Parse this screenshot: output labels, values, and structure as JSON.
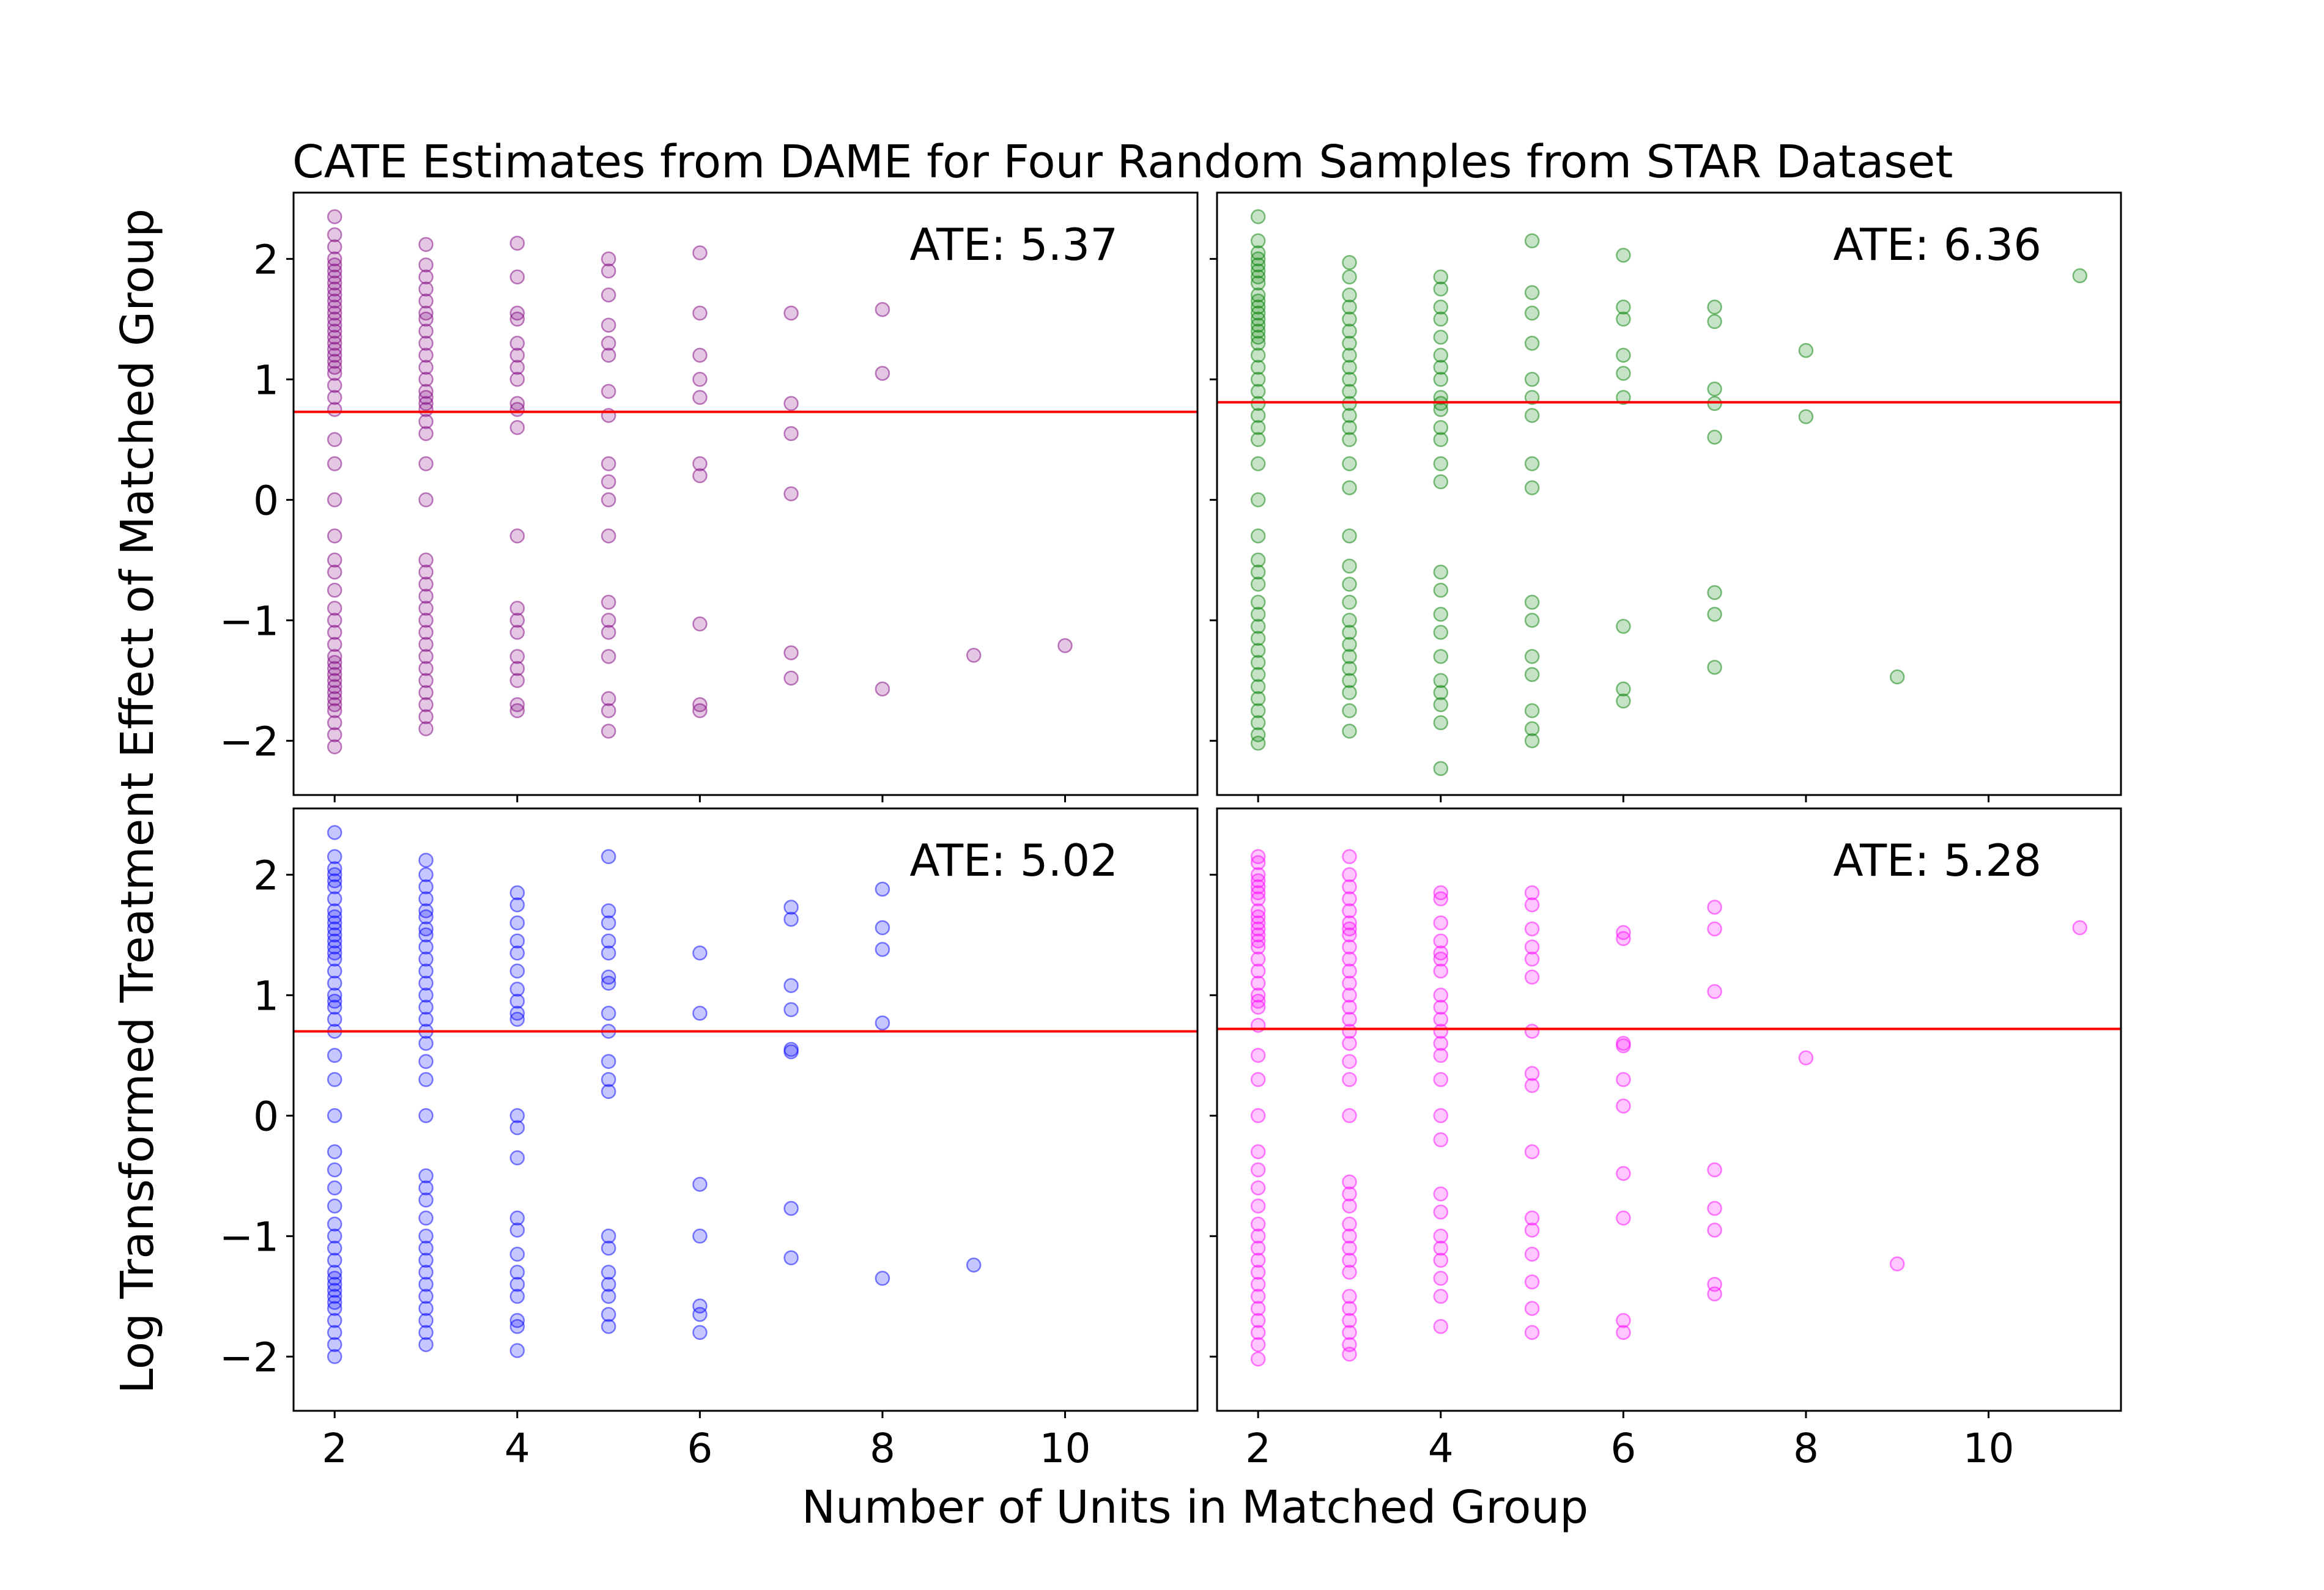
{
  "figure": {
    "title": "CATE Estimates from DAME for Four Random Samples from STAR Dataset",
    "xlabel": "Number of Units in Matched Group",
    "ylabel": "Log Transformed Treatment Effect of Matched Group"
  },
  "chart_data": [
    {
      "type": "scatter",
      "panel": "top-left",
      "annotation": "ATE: 5.37",
      "color": "#800080",
      "reference_line": {
        "y": 0.73,
        "color": "#ff0000"
      },
      "xlim": [
        1.55,
        11.45
      ],
      "ylim": [
        -2.45,
        2.55
      ],
      "xticks": [
        2,
        4,
        6,
        8,
        10
      ],
      "yticks": [
        -2,
        -1,
        0,
        1,
        2
      ],
      "grid": false,
      "columns": [
        {
          "x": 2,
          "y": [
            2.35,
            2.2,
            2.1,
            2.0,
            1.95,
            1.9,
            1.85,
            1.8,
            1.75,
            1.7,
            1.65,
            1.6,
            1.55,
            1.5,
            1.45,
            1.4,
            1.35,
            1.3,
            1.25,
            1.2,
            1.15,
            1.1,
            1.05,
            0.95,
            0.85,
            0.75,
            0.5,
            0.3,
            0.0,
            -0.3,
            -0.5,
            -0.6,
            -0.75,
            -0.9,
            -1.0,
            -1.1,
            -1.2,
            -1.3,
            -1.35,
            -1.4,
            -1.45,
            -1.5,
            -1.55,
            -1.6,
            -1.65,
            -1.7,
            -1.75,
            -1.85,
            -1.95,
            -2.05
          ]
        },
        {
          "x": 3,
          "y": [
            2.12,
            1.95,
            1.85,
            1.75,
            1.65,
            1.55,
            1.5,
            1.4,
            1.3,
            1.2,
            1.1,
            1.0,
            0.9,
            0.85,
            0.8,
            0.75,
            0.65,
            0.55,
            0.3,
            0.0,
            -0.5,
            -0.6,
            -0.7,
            -0.8,
            -0.9,
            -1.0,
            -1.1,
            -1.2,
            -1.3,
            -1.4,
            -1.5,
            -1.6,
            -1.7,
            -1.8,
            -1.9
          ]
        },
        {
          "x": 4,
          "y": [
            2.13,
            1.85,
            1.55,
            1.5,
            1.3,
            1.2,
            1.1,
            1.0,
            0.8,
            0.75,
            0.6,
            -0.3,
            -0.9,
            -1.0,
            -1.1,
            -1.3,
            -1.4,
            -1.5,
            -1.7,
            -1.75
          ]
        },
        {
          "x": 5,
          "y": [
            2.0,
            1.9,
            1.7,
            1.45,
            1.3,
            1.2,
            0.9,
            0.7,
            0.3,
            0.15,
            0.0,
            -0.3,
            -0.85,
            -1.0,
            -1.1,
            -1.3,
            -1.65,
            -1.75,
            -1.92
          ]
        },
        {
          "x": 6,
          "y": [
            2.05,
            1.55,
            1.2,
            1.0,
            0.85,
            0.3,
            0.2,
            -1.03,
            -1.7,
            -1.75
          ]
        },
        {
          "x": 7,
          "y": [
            1.55,
            0.8,
            0.55,
            0.05,
            -1.27,
            -1.48
          ]
        },
        {
          "x": 8,
          "y": [
            1.58,
            1.05,
            -1.57
          ]
        },
        {
          "x": 9,
          "y": [
            -1.29
          ]
        },
        {
          "x": 10,
          "y": [
            -1.21
          ]
        }
      ]
    },
    {
      "type": "scatter",
      "panel": "top-right",
      "annotation": "ATE: 6.36",
      "color": "#008000",
      "reference_line": {
        "y": 0.81,
        "color": "#ff0000"
      },
      "xlim": [
        1.55,
        11.45
      ],
      "ylim": [
        -2.45,
        2.55
      ],
      "xticks": [
        2,
        4,
        6,
        8,
        10
      ],
      "yticks": [
        -2,
        -1,
        0,
        1,
        2
      ],
      "grid": false,
      "columns": [
        {
          "x": 2,
          "y": [
            2.35,
            2.15,
            2.05,
            2.0,
            1.95,
            1.9,
            1.85,
            1.8,
            1.7,
            1.65,
            1.6,
            1.55,
            1.5,
            1.45,
            1.4,
            1.35,
            1.3,
            1.2,
            1.1,
            1.0,
            0.9,
            0.8,
            0.7,
            0.6,
            0.5,
            0.3,
            0.0,
            -0.3,
            -0.5,
            -0.6,
            -0.7,
            -0.85,
            -0.95,
            -1.05,
            -1.15,
            -1.25,
            -1.35,
            -1.45,
            -1.55,
            -1.65,
            -1.75,
            -1.85,
            -1.95,
            -2.02
          ]
        },
        {
          "x": 3,
          "y": [
            1.97,
            1.85,
            1.7,
            1.6,
            1.5,
            1.4,
            1.3,
            1.2,
            1.1,
            1.0,
            0.9,
            0.8,
            0.7,
            0.6,
            0.5,
            0.3,
            0.1,
            -0.3,
            -0.55,
            -0.7,
            -0.85,
            -1.0,
            -1.1,
            -1.2,
            -1.3,
            -1.4,
            -1.5,
            -1.6,
            -1.75,
            -1.92
          ]
        },
        {
          "x": 4,
          "y": [
            1.85,
            1.75,
            1.6,
            1.5,
            1.35,
            1.2,
            1.1,
            1.0,
            0.85,
            0.8,
            0.75,
            0.6,
            0.5,
            0.3,
            0.15,
            -0.6,
            -0.75,
            -0.95,
            -1.1,
            -1.3,
            -1.5,
            -1.6,
            -1.7,
            -1.85,
            -2.23
          ]
        },
        {
          "x": 5,
          "y": [
            2.15,
            1.72,
            1.55,
            1.3,
            1.0,
            0.85,
            0.7,
            0.3,
            0.1,
            -0.85,
            -1.0,
            -1.3,
            -1.45,
            -1.75,
            -1.9,
            -2.0
          ]
        },
        {
          "x": 6,
          "y": [
            2.03,
            1.6,
            1.5,
            1.2,
            1.05,
            0.85,
            -1.05,
            -1.57,
            -1.67
          ]
        },
        {
          "x": 7,
          "y": [
            1.6,
            1.48,
            0.92,
            0.8,
            0.52,
            -0.77,
            -0.95,
            -1.39
          ]
        },
        {
          "x": 8,
          "y": [
            1.24,
            0.69
          ]
        },
        {
          "x": 9,
          "y": [
            -1.47
          ]
        },
        {
          "x": 11,
          "y": [
            1.86
          ]
        }
      ]
    },
    {
      "type": "scatter",
      "panel": "bottom-left",
      "annotation": "ATE: 5.02",
      "color": "#0000ff",
      "reference_line": {
        "y": 0.7,
        "color": "#ff0000"
      },
      "xlim": [
        1.55,
        11.45
      ],
      "ylim": [
        -2.45,
        2.55
      ],
      "xticks": [
        2,
        4,
        6,
        8,
        10
      ],
      "yticks": [
        -2,
        -1,
        0,
        1,
        2
      ],
      "grid": false,
      "columns": [
        {
          "x": 2,
          "y": [
            2.35,
            2.15,
            2.05,
            2.0,
            1.95,
            1.9,
            1.8,
            1.7,
            1.65,
            1.6,
            1.55,
            1.5,
            1.45,
            1.4,
            1.35,
            1.3,
            1.2,
            1.1,
            1.0,
            0.95,
            0.9,
            0.8,
            0.7,
            0.5,
            0.3,
            0.0,
            -0.3,
            -0.45,
            -0.6,
            -0.75,
            -0.9,
            -1.0,
            -1.1,
            -1.2,
            -1.3,
            -1.35,
            -1.4,
            -1.45,
            -1.5,
            -1.55,
            -1.6,
            -1.7,
            -1.8,
            -1.9,
            -2.0
          ]
        },
        {
          "x": 3,
          "y": [
            2.12,
            2.0,
            1.9,
            1.8,
            1.7,
            1.65,
            1.55,
            1.5,
            1.4,
            1.3,
            1.2,
            1.1,
            1.0,
            0.9,
            0.8,
            0.7,
            0.6,
            0.45,
            0.3,
            0.0,
            -0.5,
            -0.6,
            -0.7,
            -0.85,
            -1.0,
            -1.1,
            -1.2,
            -1.3,
            -1.4,
            -1.5,
            -1.6,
            -1.7,
            -1.8,
            -1.9
          ]
        },
        {
          "x": 4,
          "y": [
            1.85,
            1.75,
            1.6,
            1.45,
            1.35,
            1.2,
            1.05,
            0.95,
            0.85,
            0.8,
            0.0,
            -0.1,
            -0.35,
            -0.85,
            -0.95,
            -1.15,
            -1.3,
            -1.4,
            -1.5,
            -1.7,
            -1.75,
            -1.95
          ]
        },
        {
          "x": 5,
          "y": [
            2.15,
            1.7,
            1.6,
            1.45,
            1.35,
            1.15,
            1.1,
            0.85,
            0.7,
            0.45,
            0.3,
            0.2,
            -1.0,
            -1.1,
            -1.3,
            -1.4,
            -1.5,
            -1.65,
            -1.75
          ]
        },
        {
          "x": 6,
          "y": [
            1.35,
            0.85,
            -0.57,
            -1.0,
            -1.58,
            -1.65,
            -1.8
          ]
        },
        {
          "x": 7,
          "y": [
            1.73,
            1.63,
            1.08,
            0.88,
            0.55,
            0.53,
            -0.77,
            -1.18
          ]
        },
        {
          "x": 8,
          "y": [
            1.88,
            1.56,
            1.38,
            0.77,
            -1.35
          ]
        },
        {
          "x": 9,
          "y": [
            -1.24
          ]
        }
      ]
    },
    {
      "type": "scatter",
      "panel": "bottom-right",
      "annotation": "ATE: 5.28",
      "color": "#ff00ff",
      "reference_line": {
        "y": 0.72,
        "color": "#ff0000"
      },
      "xlim": [
        1.55,
        11.45
      ],
      "ylim": [
        -2.45,
        2.55
      ],
      "xticks": [
        2,
        4,
        6,
        8,
        10
      ],
      "yticks": [
        -2,
        -1,
        0,
        1,
        2
      ],
      "grid": false,
      "columns": [
        {
          "x": 2,
          "y": [
            2.15,
            2.1,
            2.0,
            1.95,
            1.9,
            1.85,
            1.8,
            1.7,
            1.65,
            1.6,
            1.55,
            1.5,
            1.45,
            1.4,
            1.3,
            1.2,
            1.1,
            1.0,
            0.95,
            0.9,
            0.75,
            0.5,
            0.3,
            0.0,
            -0.3,
            -0.45,
            -0.6,
            -0.75,
            -0.9,
            -1.0,
            -1.1,
            -1.2,
            -1.3,
            -1.4,
            -1.5,
            -1.6,
            -1.7,
            -1.8,
            -1.9,
            -2.02
          ]
        },
        {
          "x": 3,
          "y": [
            2.15,
            2.0,
            1.9,
            1.8,
            1.7,
            1.6,
            1.55,
            1.5,
            1.4,
            1.3,
            1.2,
            1.1,
            1.0,
            0.9,
            0.8,
            0.7,
            0.6,
            0.45,
            0.3,
            0.0,
            -0.55,
            -0.65,
            -0.75,
            -0.9,
            -1.0,
            -1.1,
            -1.2,
            -1.3,
            -1.5,
            -1.6,
            -1.7,
            -1.8,
            -1.9,
            -1.98
          ]
        },
        {
          "x": 4,
          "y": [
            1.85,
            1.8,
            1.6,
            1.45,
            1.35,
            1.3,
            1.2,
            1.0,
            0.9,
            0.8,
            0.7,
            0.6,
            0.5,
            0.3,
            0.0,
            -0.2,
            -0.65,
            -0.8,
            -1.0,
            -1.1,
            -1.2,
            -1.35,
            -1.5,
            -1.75
          ]
        },
        {
          "x": 5,
          "y": [
            1.85,
            1.75,
            1.55,
            1.4,
            1.3,
            1.15,
            0.7,
            0.35,
            0.25,
            -0.3,
            -0.85,
            -0.95,
            -1.15,
            -1.38,
            -1.6,
            -1.8
          ]
        },
        {
          "x": 6,
          "y": [
            1.52,
            1.47,
            0.6,
            0.58,
            0.3,
            0.08,
            -0.48,
            -0.85,
            -1.7,
            -1.8
          ]
        },
        {
          "x": 7,
          "y": [
            1.73,
            1.55,
            1.03,
            -0.45,
            -0.77,
            -0.95,
            -1.4,
            -1.48
          ]
        },
        {
          "x": 8,
          "y": [
            0.48
          ]
        },
        {
          "x": 9,
          "y": [
            -1.23
          ]
        },
        {
          "x": 11,
          "y": [
            1.56
          ]
        }
      ]
    }
  ]
}
